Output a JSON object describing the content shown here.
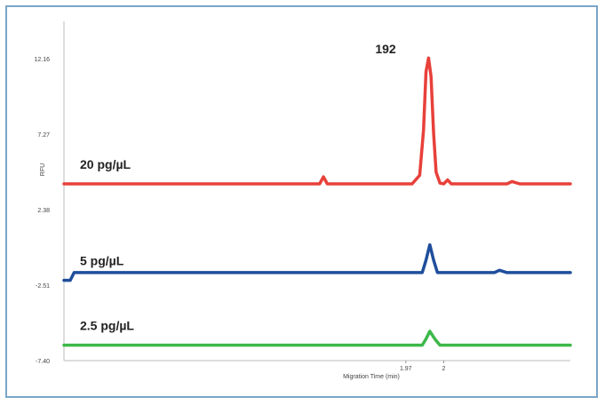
{
  "chart_data": {
    "type": "line",
    "title": "",
    "xlabel": "Migration Time (min)",
    "ylabel": "RFU",
    "x_ticks": [
      "1.97",
      "2"
    ],
    "y_ticks": [
      "12.16",
      "7.27",
      "2.38",
      "-2.51",
      "-7.40"
    ],
    "ylim": [
      -7.4,
      12.16
    ],
    "xlim": [
      1.7,
      2.1
    ],
    "grid": false,
    "peak_annotation": "192",
    "series": [
      {
        "name": "20 pg/µL",
        "color": "#e8403a",
        "points": [
          [
            1.7,
            4.05
          ],
          [
            1.902,
            4.05
          ],
          [
            1.905,
            4.5
          ],
          [
            1.908,
            4.05
          ],
          [
            1.975,
            4.05
          ],
          [
            1.981,
            4.6
          ],
          [
            1.984,
            7.5
          ],
          [
            1.986,
            11.3
          ],
          [
            1.988,
            12.2
          ],
          [
            1.99,
            11.0
          ],
          [
            1.992,
            7.3
          ],
          [
            1.994,
            4.8
          ],
          [
            1.997,
            4.1
          ],
          [
            2.0,
            4.05
          ],
          [
            2.003,
            4.3
          ],
          [
            2.006,
            4.05
          ],
          [
            2.05,
            4.05
          ],
          [
            2.054,
            4.2
          ],
          [
            2.06,
            4.05
          ],
          [
            2.1,
            4.05
          ]
        ]
      },
      {
        "name": "5 pg/µL",
        "color": "#1f4e9c",
        "points": [
          [
            1.7,
            -2.2
          ],
          [
            1.705,
            -2.2
          ],
          [
            1.708,
            -1.7
          ],
          [
            1.983,
            -1.7
          ],
          [
            1.986,
            -0.9
          ],
          [
            1.989,
            0.1
          ],
          [
            1.992,
            -0.9
          ],
          [
            1.995,
            -1.7
          ],
          [
            2.04,
            -1.7
          ],
          [
            2.044,
            -1.55
          ],
          [
            2.05,
            -1.7
          ],
          [
            2.1,
            -1.7
          ]
        ]
      },
      {
        "name": "2.5 pg/µL",
        "color": "#3db84a",
        "points": [
          [
            1.7,
            -6.4
          ],
          [
            1.983,
            -6.4
          ],
          [
            1.986,
            -6.0
          ],
          [
            1.989,
            -5.5
          ],
          [
            1.993,
            -6.0
          ],
          [
            1.997,
            -6.4
          ],
          [
            2.1,
            -6.4
          ]
        ]
      }
    ]
  }
}
